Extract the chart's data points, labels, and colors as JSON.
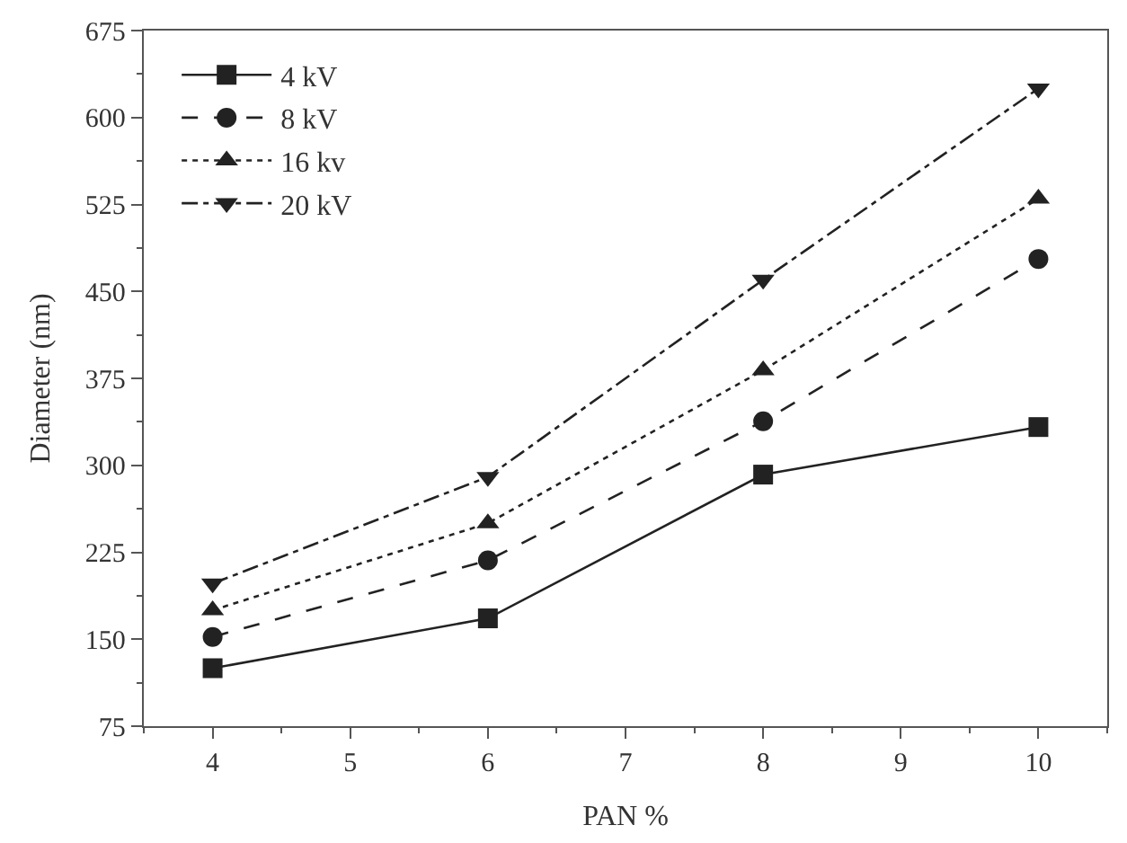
{
  "chart_data": {
    "type": "line",
    "xlabel": "PAN %",
    "ylabel": "Diameter (nm)",
    "x": [
      4,
      6,
      8,
      10
    ],
    "series": [
      {
        "name": "4 kV",
        "color": "#222222",
        "values": [
          125,
          168,
          292,
          333
        ],
        "marker": "square",
        "line_style": "solid"
      },
      {
        "name": "8 kV",
        "color": "#222222",
        "values": [
          152,
          218,
          338,
          478
        ],
        "marker": "circle",
        "line_style": "dashed"
      },
      {
        "name": "16 kv",
        "color": "#222222",
        "values": [
          175,
          250,
          382,
          530
        ],
        "marker": "triangle",
        "line_style": "dotted"
      },
      {
        "name": "20 kV",
        "color": "#222222",
        "values": [
          198,
          290,
          460,
          625
        ],
        "marker": "triangle-down",
        "line_style": "dashdot"
      }
    ],
    "xlim": [
      3.5,
      10.5
    ],
    "xticks": [
      4,
      5,
      6,
      7,
      8,
      9,
      10
    ],
    "ylim": [
      75,
      675
    ],
    "yticks": [
      75,
      150,
      225,
      300,
      375,
      450,
      525,
      600,
      675
    ],
    "legend": "top left"
  }
}
